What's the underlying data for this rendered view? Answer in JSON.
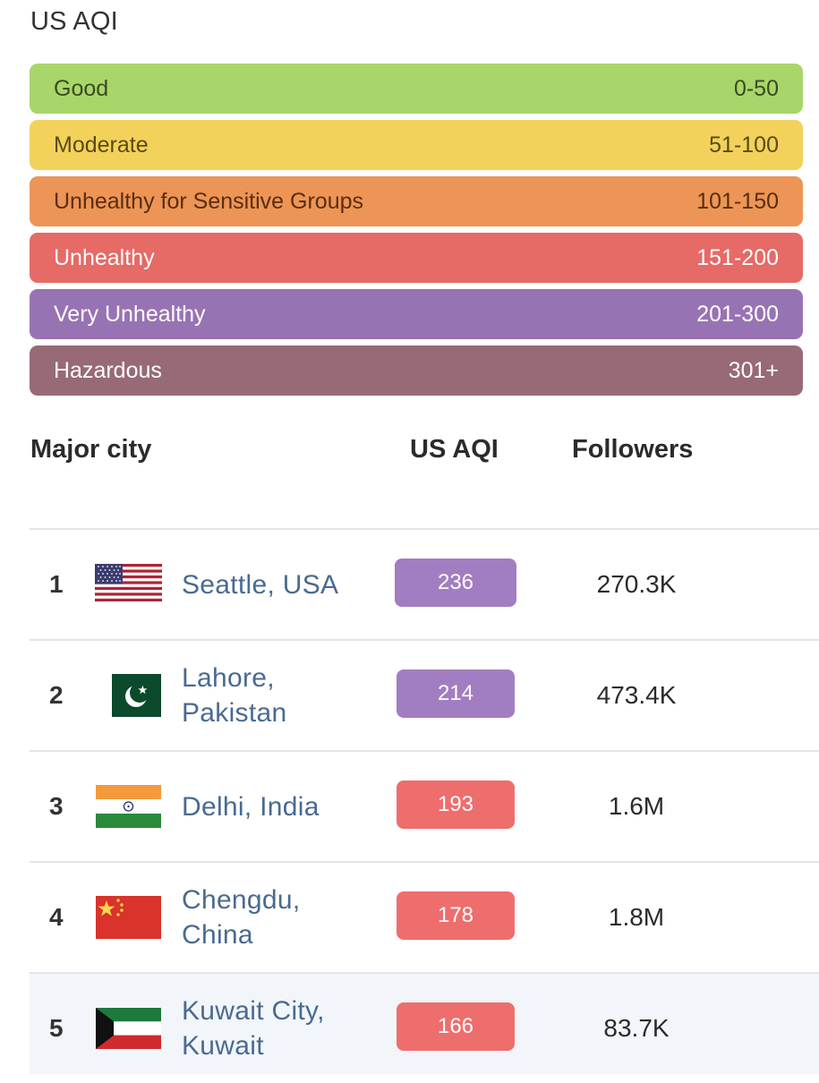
{
  "title": "US AQI",
  "legend": [
    {
      "label": "Good",
      "range": "0-50",
      "color": "#a8d66a",
      "text_color": "#3c4a1f"
    },
    {
      "label": "Moderate",
      "range": "51-100",
      "color": "#f2d25a",
      "text_color": "#5a4a12"
    },
    {
      "label": "Unhealthy for Sensitive Groups",
      "range": "101-150",
      "color": "#ec9556",
      "text_color": "#5b2d0e"
    },
    {
      "label": "Unhealthy",
      "range": "151-200",
      "color": "#e66a66",
      "text_color": "#ffffff"
    },
    {
      "label": "Very Unhealthy",
      "range": "201-300",
      "color": "#9873b4",
      "text_color": "#ffffff"
    },
    {
      "label": "Hazardous",
      "range": "301+",
      "color": "#986a76",
      "text_color": "#ffffff"
    }
  ],
  "table": {
    "headers": {
      "city": "Major city",
      "aqi": "US AQI",
      "followers": "Followers"
    },
    "rows": [
      {
        "rank": "1",
        "city": "Seattle, USA",
        "country_flag": "usa-flag-icon",
        "aqi": "236",
        "aqi_color": "#a37dc1",
        "followers": "270.3K"
      },
      {
        "rank": "2",
        "city": "Lahore, Pakistan",
        "country_flag": "pakistan-flag-icon",
        "aqi": "214",
        "aqi_color": "#a37dc1",
        "followers": "473.4K"
      },
      {
        "rank": "3",
        "city": "Delhi, India",
        "country_flag": "india-flag-icon",
        "aqi": "193",
        "aqi_color": "#ee6e6d",
        "followers": "1.6M"
      },
      {
        "rank": "4",
        "city": "Chengdu, China",
        "country_flag": "china-flag-icon",
        "aqi": "178",
        "aqi_color": "#ee6e6d",
        "followers": "1.8M"
      },
      {
        "rank": "5",
        "city": "Kuwait City, Kuwait",
        "country_flag": "kuwait-flag-icon",
        "aqi": "166",
        "aqi_color": "#ee6e6d",
        "followers": "83.7K"
      }
    ]
  }
}
